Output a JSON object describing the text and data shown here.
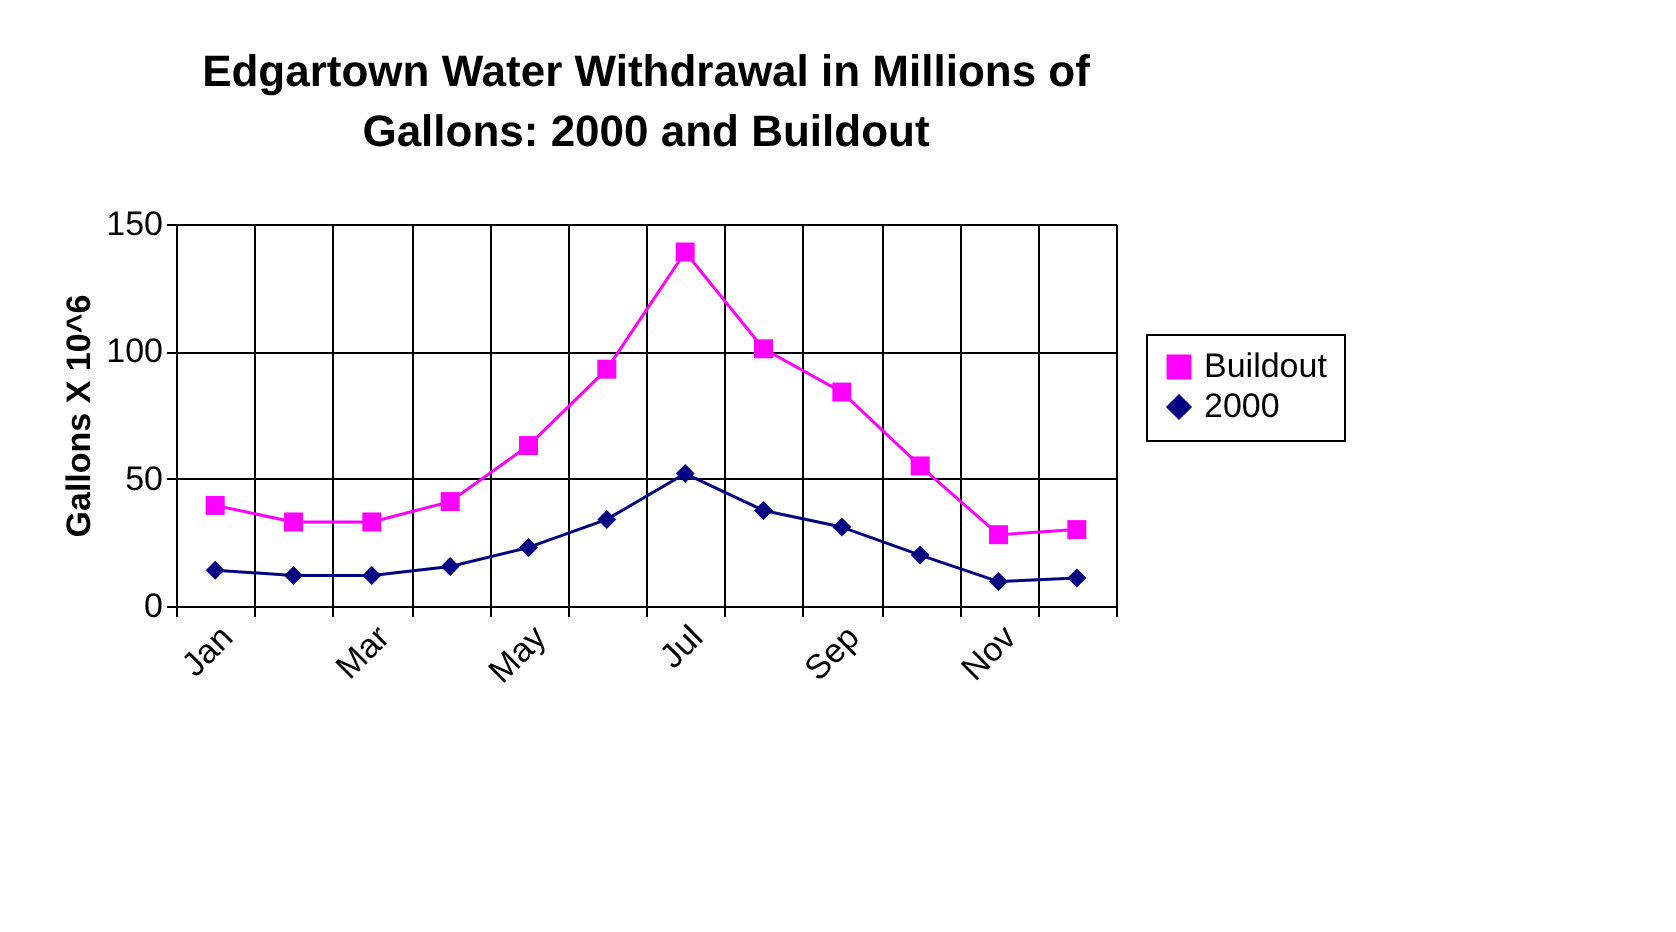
{
  "chart_data": {
    "type": "line",
    "title": "Edgartown Water Withdrawal in Millions of Gallons: 2000 and Buildout",
    "ylabel": "Gallons X 10^6",
    "categories": [
      "Jan",
      null,
      "Mar",
      null,
      "May",
      null,
      "Jul",
      null,
      "Sep",
      null,
      "Nov",
      null
    ],
    "series": [
      {
        "name": "Buildout",
        "color": "#ff00ff",
        "marker": "square",
        "values": [
          39.5,
          33,
          33,
          41,
          63,
          93,
          139,
          101,
          84,
          55,
          28,
          30
        ]
      },
      {
        "name": "2000",
        "color": "#000080",
        "marker": "diamond",
        "values": [
          14,
          12,
          12,
          15.5,
          23,
          34,
          52,
          37.5,
          31,
          20,
          9.6,
          11
        ]
      }
    ],
    "ylim": [
      0,
      150
    ],
    "yticks": [
      0,
      50,
      100,
      150
    ],
    "grid": true,
    "legend": "right",
    "line_style": "solid"
  }
}
